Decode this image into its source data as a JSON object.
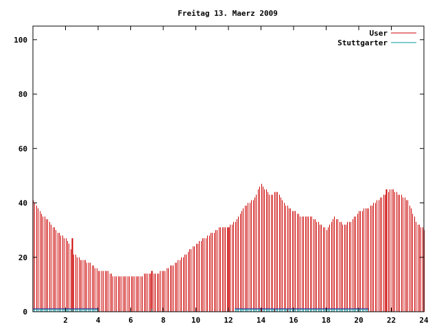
{
  "chart_data": {
    "type": "bar",
    "title": "Freitag 13. Maerz 2009",
    "xlabel": "",
    "ylabel": "",
    "xlim": [
      0,
      24
    ],
    "ylim": [
      0,
      105
    ],
    "x_ticks": [
      "2",
      "4",
      "6",
      "8",
      "10",
      "12",
      "14",
      "16",
      "18",
      "20",
      "22",
      "24"
    ],
    "y_ticks": [
      "0",
      "20",
      "40",
      "60",
      "80",
      "100"
    ],
    "grid": false,
    "legend_position": "top-right",
    "series": [
      {
        "name": "User",
        "color": "#cc0000",
        "x": [
          0.0,
          0.5,
          1.0,
          1.5,
          2.0,
          2.5,
          3.0,
          3.5,
          4.0,
          4.5,
          5.0,
          5.5,
          6.0,
          6.5,
          7.0,
          7.5,
          8.0,
          8.5,
          9.0,
          9.5,
          10.0,
          10.5,
          11.0,
          11.5,
          12.0,
          12.5,
          13.0,
          13.5,
          14.0,
          14.5,
          15.0,
          15.5,
          16.0,
          16.5,
          17.0,
          17.5,
          18.0,
          18.5,
          19.0,
          19.5,
          20.0,
          20.5,
          21.0,
          21.5,
          22.0,
          22.5,
          23.0,
          23.5,
          24.0
        ],
        "values": [
          41,
          36,
          33,
          29,
          27,
          21,
          19,
          18,
          15,
          15,
          13,
          13,
          13,
          13,
          14,
          14,
          15,
          17,
          19,
          22,
          25,
          27,
          29,
          31,
          31,
          34,
          39,
          41,
          47,
          43,
          44,
          39,
          37,
          35,
          35,
          33,
          30,
          35,
          32,
          33,
          37,
          38,
          40,
          43,
          45,
          43,
          41,
          33,
          30
        ],
        "spikes": [
          {
            "x": 2.4,
            "value": 27
          },
          {
            "x": 7.3,
            "value": 15
          },
          {
            "x": 12.0,
            "value": 31
          },
          {
            "x": 21.7,
            "value": 45
          }
        ]
      },
      {
        "name": "Stuttgarter",
        "color": "#009999",
        "values": [
          {
            "x": [
              0,
              4
            ],
            "value": 1
          },
          {
            "x": 7.3,
            "value": 1
          },
          {
            "x": [
              12.4,
              20.6
            ],
            "value": 1
          }
        ]
      }
    ]
  }
}
